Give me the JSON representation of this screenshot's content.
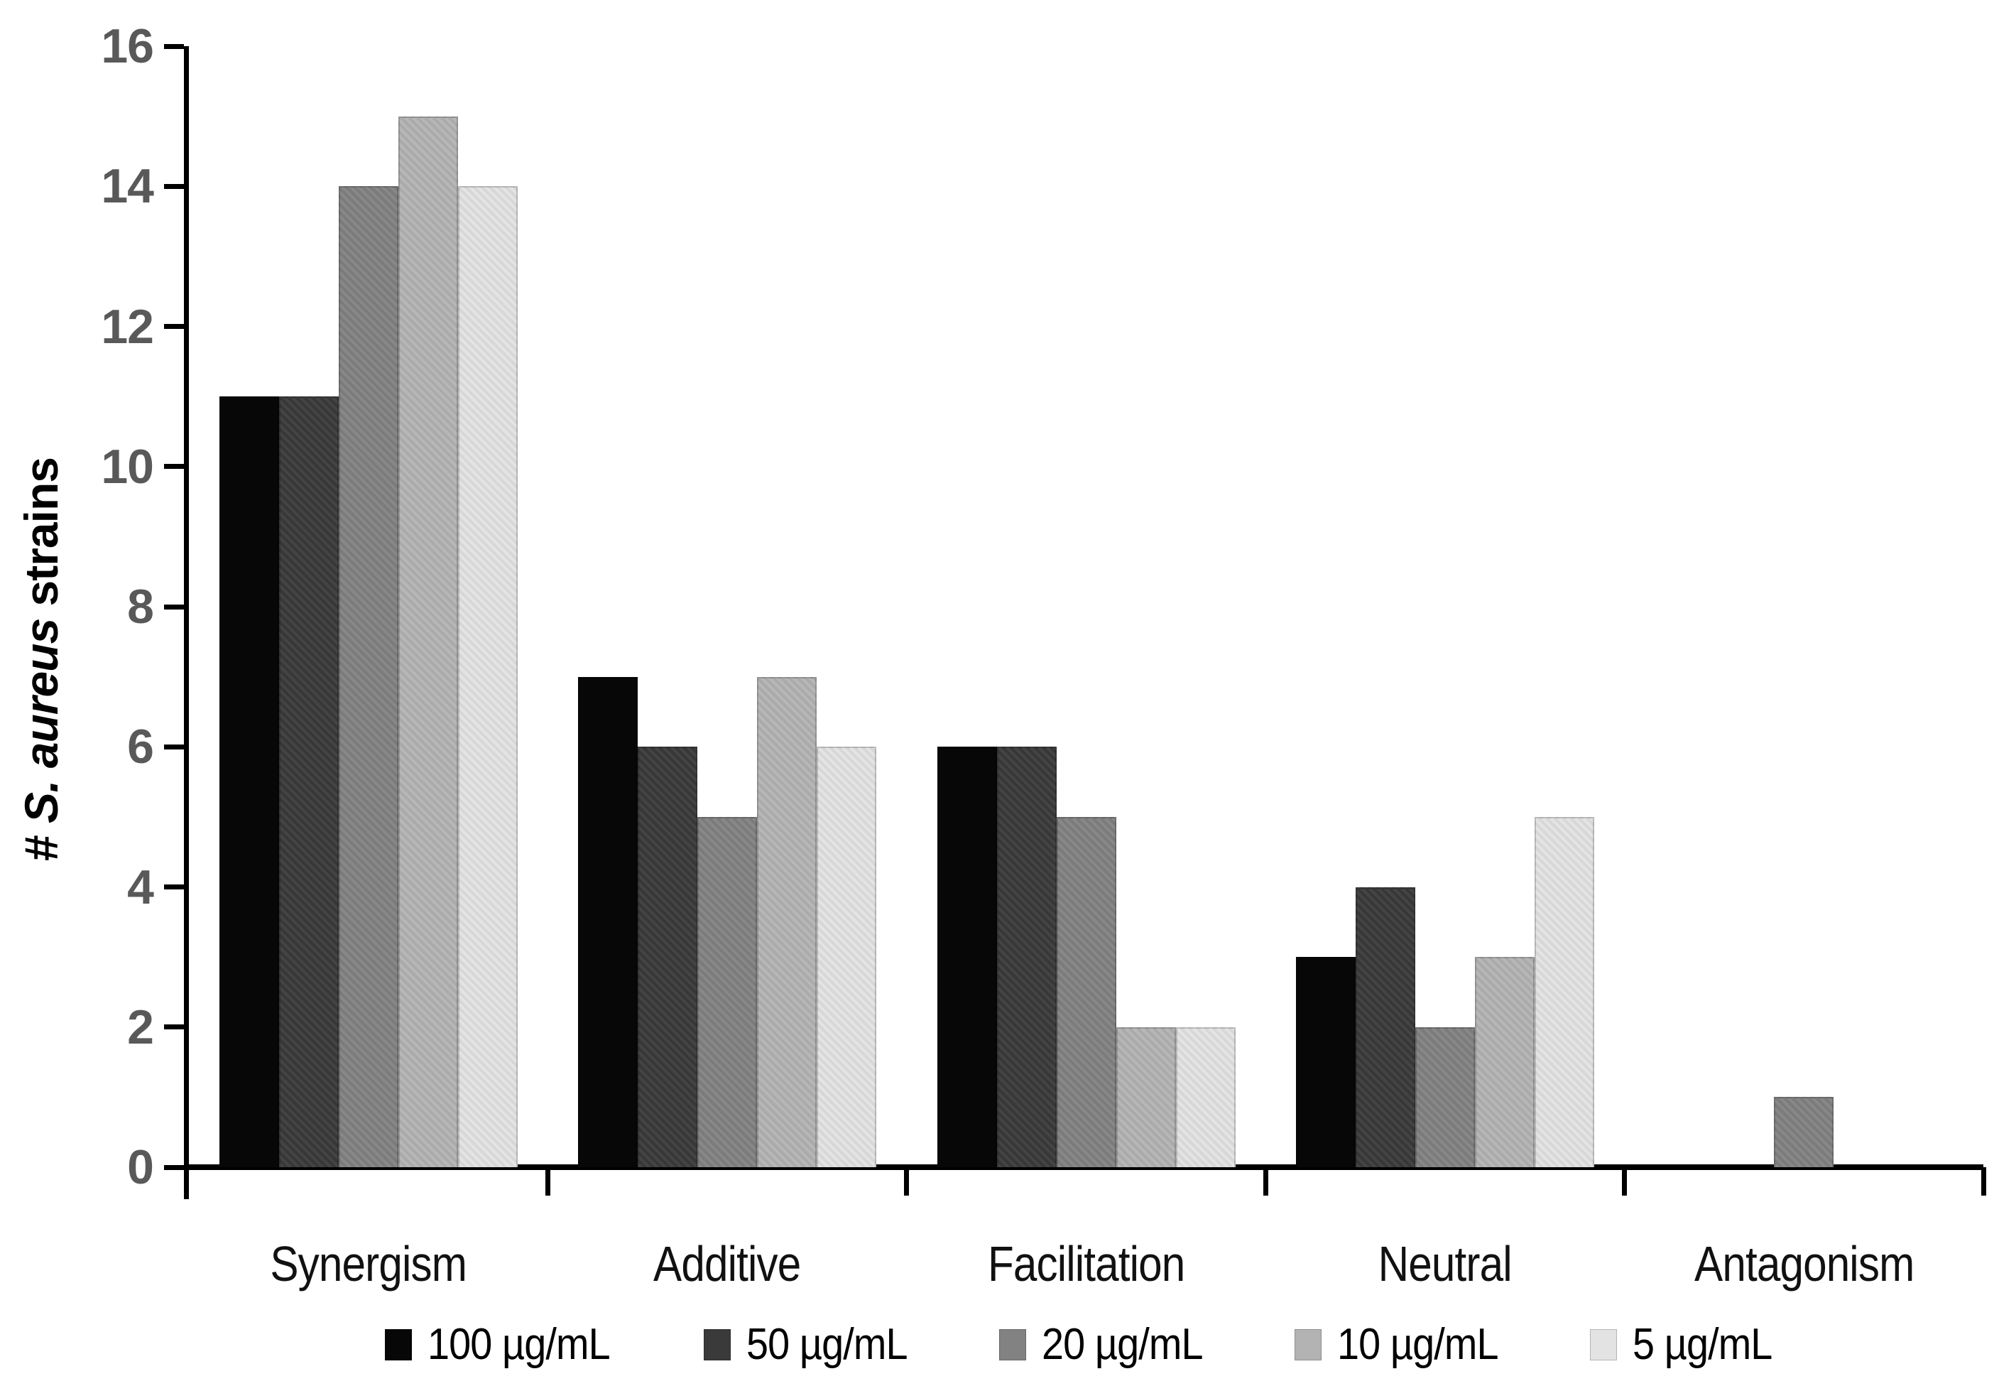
{
  "chart_data": {
    "type": "bar",
    "title": "",
    "ylabel_prefix": "# ",
    "ylabel_species": "S. aureus",
    "ylabel_suffix": " strains",
    "categories": [
      "Synergism",
      "Additive",
      "Facilitation",
      "Neutral",
      "Antagonism"
    ],
    "series": [
      {
        "name": "100 µg/mL",
        "color": "#070707",
        "values": [
          11,
          7,
          6,
          3,
          0
        ]
      },
      {
        "name": "50 µg/mL",
        "color": "#3a3a3a",
        "values": [
          11,
          6,
          6,
          4,
          0
        ]
      },
      {
        "name": "20 µg/mL",
        "color": "#828282",
        "values": [
          14,
          5,
          5,
          2,
          1
        ]
      },
      {
        "name": "10 µg/mL",
        "color": "#b3b3b3",
        "values": [
          15,
          7,
          2,
          3,
          0
        ]
      },
      {
        "name": "5 µg/mL",
        "color": "#e3e3e3",
        "values": [
          14,
          6,
          2,
          5,
          0
        ]
      }
    ],
    "ylim": [
      0,
      16
    ],
    "ytick_step": 2,
    "yticks": [
      0,
      2,
      4,
      6,
      8,
      10,
      12,
      14,
      16
    ],
    "grid": false,
    "legend_position": "bottom",
    "axis_color": "#000000",
    "ytick_label_color": "#595959",
    "background_color": "#ffffff"
  }
}
